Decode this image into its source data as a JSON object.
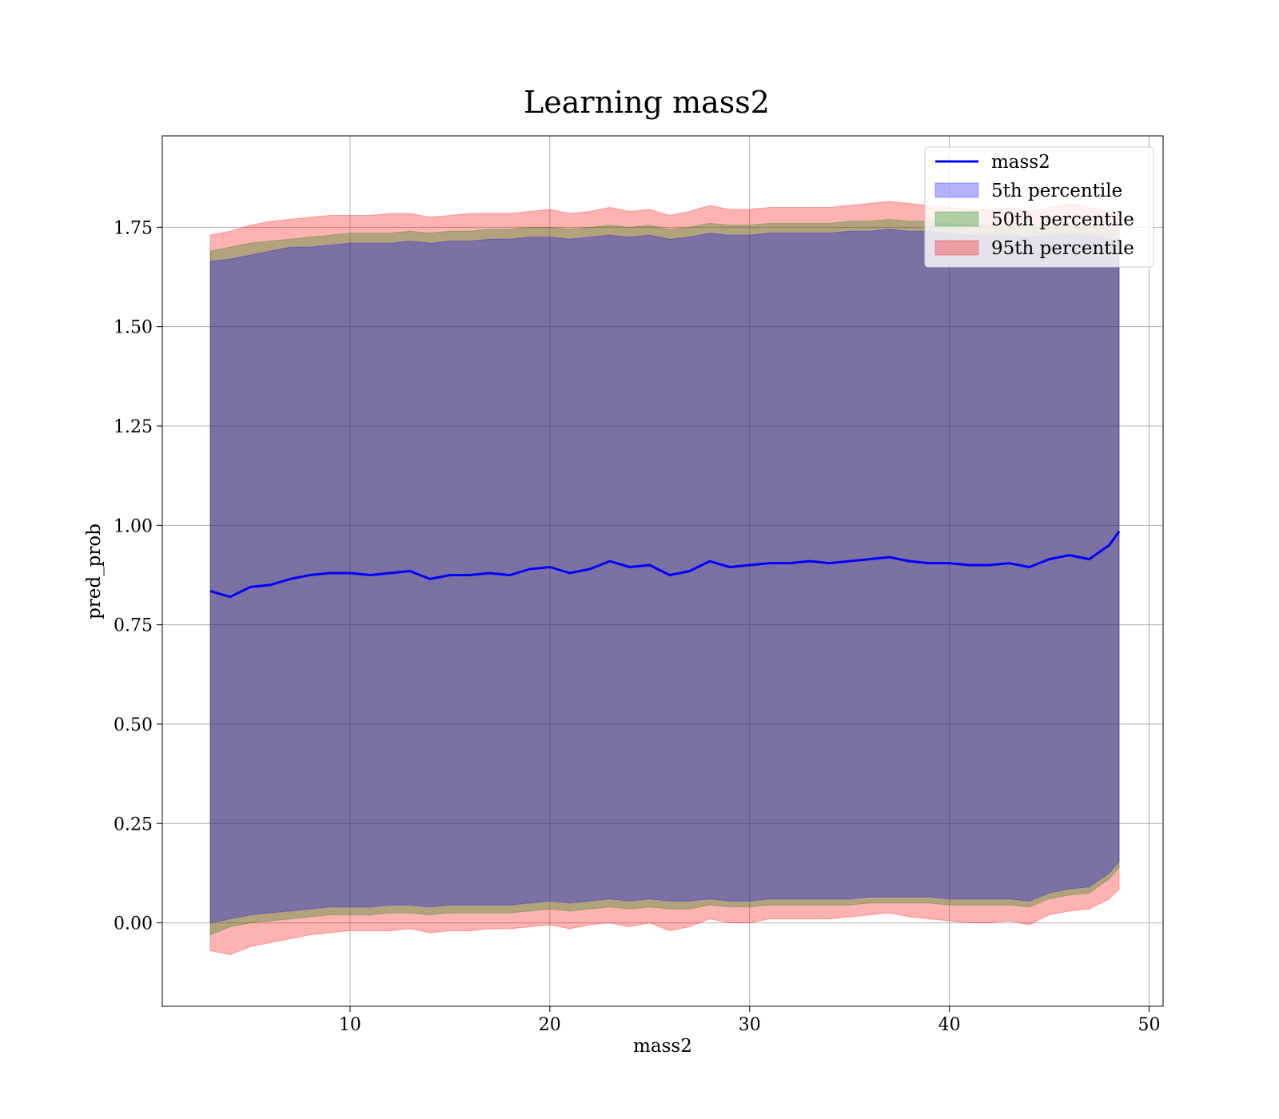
{
  "chart_data": {
    "type": "line",
    "title": "Learning mass2",
    "xlabel": "mass2",
    "ylabel": "pred_prob",
    "xlim": [
      0.6,
      50.7
    ],
    "ylim": [
      -0.21,
      1.98
    ],
    "xticks": [
      10,
      20,
      30,
      40,
      50
    ],
    "yticks": [
      0.0,
      0.25,
      0.5,
      0.75,
      1.0,
      1.25,
      1.5,
      1.75
    ],
    "xtick_labels": [
      "10",
      "20",
      "30",
      "40",
      "50"
    ],
    "ytick_labels": [
      "0.00",
      "0.25",
      "0.50",
      "0.75",
      "1.00",
      "1.25",
      "1.50",
      "1.75"
    ],
    "grid": true,
    "legend_position": "top-right",
    "x": [
      3.0,
      4.0,
      5.0,
      6.0,
      7.0,
      8.0,
      9.0,
      10.0,
      11.0,
      12.0,
      13.0,
      14.0,
      15.0,
      16.0,
      17.0,
      18.0,
      19.0,
      20.0,
      21.0,
      22.0,
      23.0,
      24.0,
      25.0,
      26.0,
      27.0,
      28.0,
      29.0,
      30.0,
      31.0,
      32.0,
      33.0,
      34.0,
      35.0,
      36.0,
      37.0,
      38.0,
      39.0,
      40.0,
      41.0,
      42.0,
      43.0,
      44.0,
      45.0,
      46.0,
      47.0,
      48.0,
      48.5
    ],
    "series": [
      {
        "name": "mass2",
        "kind": "line",
        "color": "#0000ff",
        "y": [
          0.835,
          0.82,
          0.845,
          0.85,
          0.865,
          0.875,
          0.88,
          0.88,
          0.875,
          0.88,
          0.885,
          0.865,
          0.875,
          0.875,
          0.88,
          0.875,
          0.89,
          0.895,
          0.88,
          0.89,
          0.91,
          0.895,
          0.9,
          0.875,
          0.885,
          0.91,
          0.895,
          0.9,
          0.905,
          0.905,
          0.91,
          0.905,
          0.91,
          0.915,
          0.92,
          0.91,
          0.905,
          0.905,
          0.9,
          0.9,
          0.905,
          0.895,
          0.915,
          0.925,
          0.915,
          0.95,
          0.985
        ]
      },
      {
        "name": "5th percentile",
        "kind": "band",
        "color": "#0000ff",
        "lower": [
          0.0,
          0.01,
          0.02,
          0.025,
          0.03,
          0.035,
          0.04,
          0.04,
          0.04,
          0.045,
          0.045,
          0.04,
          0.045,
          0.045,
          0.045,
          0.045,
          0.05,
          0.055,
          0.05,
          0.055,
          0.06,
          0.055,
          0.06,
          0.055,
          0.055,
          0.06,
          0.055,
          0.055,
          0.06,
          0.06,
          0.06,
          0.06,
          0.06,
          0.065,
          0.065,
          0.065,
          0.065,
          0.06,
          0.06,
          0.06,
          0.06,
          0.055,
          0.075,
          0.085,
          0.09,
          0.125,
          0.155
        ],
        "upper": [
          1.665,
          1.67,
          1.68,
          1.69,
          1.7,
          1.7,
          1.705,
          1.71,
          1.71,
          1.71,
          1.715,
          1.71,
          1.715,
          1.715,
          1.72,
          1.72,
          1.725,
          1.725,
          1.72,
          1.725,
          1.73,
          1.725,
          1.73,
          1.72,
          1.725,
          1.735,
          1.73,
          1.73,
          1.735,
          1.735,
          1.735,
          1.735,
          1.74,
          1.74,
          1.745,
          1.74,
          1.74,
          1.735,
          1.73,
          1.73,
          1.73,
          1.725,
          1.73,
          1.735,
          1.73,
          1.72,
          1.715
        ]
      },
      {
        "name": "50th percentile",
        "kind": "band",
        "color": "#008000",
        "lower": [
          -0.03,
          -0.01,
          0.0,
          0.005,
          0.01,
          0.015,
          0.02,
          0.02,
          0.02,
          0.025,
          0.025,
          0.02,
          0.025,
          0.025,
          0.025,
          0.025,
          0.03,
          0.035,
          0.03,
          0.035,
          0.04,
          0.035,
          0.04,
          0.035,
          0.035,
          0.045,
          0.04,
          0.04,
          0.045,
          0.045,
          0.045,
          0.045,
          0.045,
          0.05,
          0.05,
          0.05,
          0.05,
          0.045,
          0.045,
          0.045,
          0.045,
          0.04,
          0.06,
          0.07,
          0.075,
          0.11,
          0.14
        ],
        "upper": [
          1.69,
          1.7,
          1.71,
          1.715,
          1.72,
          1.725,
          1.73,
          1.735,
          1.735,
          1.735,
          1.74,
          1.735,
          1.74,
          1.74,
          1.745,
          1.745,
          1.75,
          1.75,
          1.745,
          1.75,
          1.755,
          1.75,
          1.755,
          1.745,
          1.75,
          1.76,
          1.755,
          1.755,
          1.76,
          1.76,
          1.76,
          1.76,
          1.765,
          1.765,
          1.77,
          1.765,
          1.765,
          1.76,
          1.755,
          1.755,
          1.755,
          1.75,
          1.755,
          1.76,
          1.755,
          1.745,
          1.74
        ]
      },
      {
        "name": "95th percentile",
        "kind": "band",
        "color": "#ff0000",
        "lower": [
          -0.07,
          -0.08,
          -0.06,
          -0.05,
          -0.04,
          -0.03,
          -0.025,
          -0.02,
          -0.02,
          -0.02,
          -0.015,
          -0.025,
          -0.02,
          -0.02,
          -0.015,
          -0.015,
          -0.01,
          -0.005,
          -0.015,
          -0.005,
          0.0,
          -0.01,
          0.0,
          -0.02,
          -0.01,
          0.01,
          0.0,
          0.0,
          0.01,
          0.01,
          0.01,
          0.01,
          0.015,
          0.02,
          0.025,
          0.015,
          0.01,
          0.005,
          0.0,
          0.0,
          0.005,
          -0.005,
          0.02,
          0.03,
          0.035,
          0.06,
          0.085
        ],
        "upper": [
          1.73,
          1.74,
          1.755,
          1.765,
          1.77,
          1.775,
          1.78,
          1.78,
          1.78,
          1.785,
          1.785,
          1.775,
          1.78,
          1.785,
          1.785,
          1.785,
          1.79,
          1.795,
          1.785,
          1.79,
          1.8,
          1.79,
          1.795,
          1.78,
          1.79,
          1.805,
          1.795,
          1.795,
          1.8,
          1.8,
          1.8,
          1.8,
          1.805,
          1.81,
          1.815,
          1.81,
          1.805,
          1.8,
          1.795,
          1.795,
          1.8,
          1.79,
          1.8,
          1.81,
          1.8,
          1.79,
          1.785
        ]
      }
    ]
  }
}
